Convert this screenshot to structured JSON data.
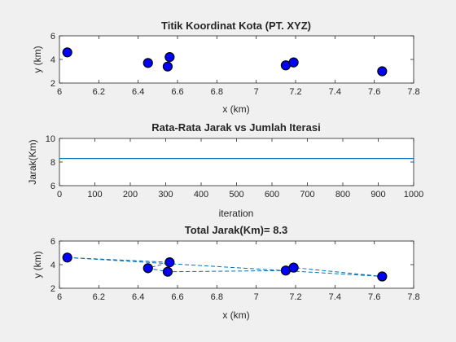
{
  "figure": {
    "background": "#f0f0f0",
    "axes_background": "#ffffff",
    "marker_color": "#0000ff",
    "line_color": "#0072bd"
  },
  "chart_data": [
    {
      "type": "scatter",
      "title": "Titik Koordinat Kota (PT. XYZ)",
      "xlabel": "x  (km)",
      "ylabel": "y  (km)",
      "xlim": [
        6,
        7.8
      ],
      "ylim": [
        2,
        6
      ],
      "xticks": [
        "6",
        "6.2",
        "6.4",
        "6.6",
        "6.8",
        "7",
        "7.2",
        "7.4",
        "7.6",
        "7.8"
      ],
      "yticks": [
        "2",
        "4",
        "6"
      ],
      "grid": false,
      "points": [
        {
          "x": 6.04,
          "y": 4.6
        },
        {
          "x": 6.45,
          "y": 3.7
        },
        {
          "x": 6.55,
          "y": 3.4
        },
        {
          "x": 6.56,
          "y": 4.2
        },
        {
          "x": 7.15,
          "y": 3.5
        },
        {
          "x": 7.19,
          "y": 3.75
        },
        {
          "x": 7.64,
          "y": 3.0
        }
      ]
    },
    {
      "type": "line",
      "title": "Rata-Rata Jarak vs Jumlah Iterasi",
      "xlabel": "iteration",
      "ylabel": "Jarak(Km)",
      "xlim": [
        0,
        1000
      ],
      "ylim": [
        6,
        10
      ],
      "xticks": [
        "0",
        "100",
        "200",
        "300",
        "400",
        "500",
        "600",
        "700",
        "800",
        "900",
        "1000"
      ],
      "yticks": [
        "6",
        "8",
        "10"
      ],
      "grid": false,
      "x": [
        0,
        1000
      ],
      "y": [
        8.3,
        8.3
      ]
    },
    {
      "type": "line",
      "title": "Total Jarak(Km)= 8.3",
      "xlabel": "x (km)",
      "ylabel": "y (km)",
      "xlim": [
        6,
        7.8
      ],
      "ylim": [
        2,
        6
      ],
      "xticks": [
        "6",
        "6.2",
        "6.4",
        "6.6",
        "6.8",
        "7",
        "7.2",
        "7.4",
        "7.6",
        "7.8"
      ],
      "yticks": [
        "2",
        "4",
        "6"
      ],
      "grid": false,
      "line_style": "dashed",
      "points": [
        {
          "x": 6.04,
          "y": 4.6
        },
        {
          "x": 6.45,
          "y": 3.7
        },
        {
          "x": 6.55,
          "y": 3.4
        },
        {
          "x": 6.56,
          "y": 4.2
        },
        {
          "x": 7.15,
          "y": 3.5
        },
        {
          "x": 7.19,
          "y": 3.75
        },
        {
          "x": 7.64,
          "y": 3.0
        }
      ],
      "route": [
        {
          "x": 6.04,
          "y": 4.6
        },
        {
          "x": 6.56,
          "y": 4.2
        },
        {
          "x": 6.45,
          "y": 3.7
        },
        {
          "x": 6.55,
          "y": 3.4
        },
        {
          "x": 7.15,
          "y": 3.5
        },
        {
          "x": 7.19,
          "y": 3.75
        },
        {
          "x": 7.64,
          "y": 3.0
        },
        {
          "x": 6.04,
          "y": 4.6
        }
      ]
    }
  ]
}
